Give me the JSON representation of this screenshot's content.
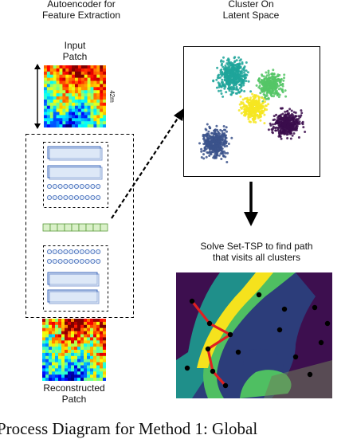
{
  "titles": {
    "autoencoder": [
      "Autoencoder for",
      "Feature Extraction"
    ],
    "cluster": [
      "Cluster On",
      "Latent Space"
    ],
    "input_patch": [
      "Input",
      "Patch"
    ],
    "reconstructed_patch": [
      "Reconstructed",
      "Patch"
    ],
    "tsp": [
      "Solve Set-TSP to find path",
      "that visits all clusters"
    ],
    "scale": "42m"
  },
  "caption": "Process Diagram for Method 1: Global",
  "colors": {
    "teal": "#1fa59a",
    "green": "#55c566",
    "yellow": "#f6e621",
    "purple": "#3b0d4c",
    "navy": "#3b528b",
    "path": "#e02020",
    "node": "#000000"
  },
  "clusters": [
    {
      "name": "teal",
      "color": "teal"
    },
    {
      "name": "green",
      "color": "green"
    },
    {
      "name": "yellow",
      "color": "yellow"
    },
    {
      "name": "purple",
      "color": "purple"
    },
    {
      "name": "navy",
      "color": "navy"
    }
  ]
}
